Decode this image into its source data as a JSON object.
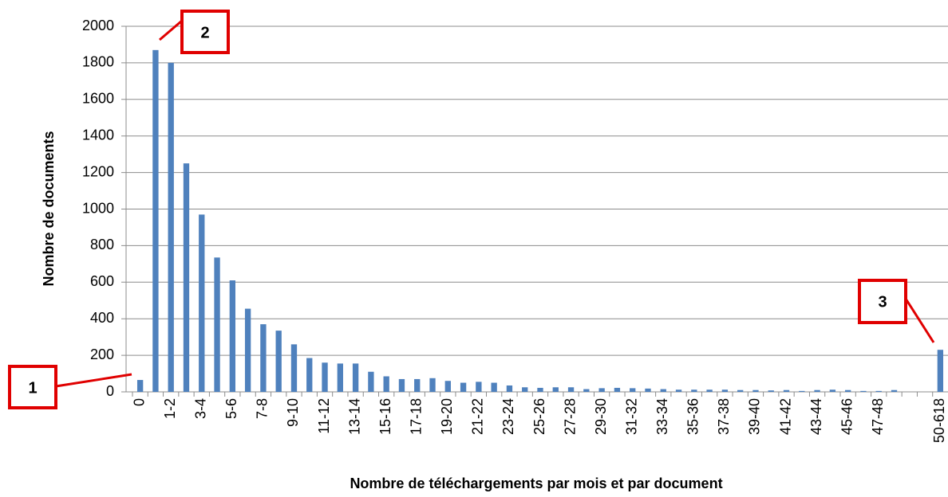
{
  "chart_data": {
    "type": "bar",
    "xlabel": "Nombre de téléchargements par mois et par document",
    "ylabel": "Nombre de documents",
    "categories": [
      "0",
      null,
      "1-2",
      null,
      "3-4",
      null,
      "5-6",
      null,
      "7-8",
      null,
      "9-10",
      null,
      "11-12",
      null,
      "13-14",
      null,
      "15-16",
      null,
      "17-18",
      null,
      "19-20",
      null,
      "21-22",
      null,
      "23-24",
      null,
      "25-26",
      null,
      "27-28",
      null,
      "29-30",
      null,
      "31-32",
      null,
      "33-34",
      null,
      "35-36",
      null,
      "37-38",
      null,
      "39-40",
      null,
      "41-42",
      null,
      "43-44",
      null,
      "45-46",
      null,
      "47-48",
      null,
      null,
      null,
      "50-618"
    ],
    "values": [
      65,
      1870,
      1800,
      1250,
      970,
      735,
      610,
      455,
      370,
      335,
      260,
      185,
      160,
      155,
      155,
      110,
      85,
      70,
      70,
      75,
      60,
      50,
      55,
      50,
      35,
      25,
      22,
      25,
      25,
      15,
      20,
      22,
      20,
      18,
      15,
      12,
      12,
      12,
      12,
      10,
      10,
      8,
      10,
      5,
      10,
      12,
      10,
      5,
      5,
      10,
      0,
      0,
      230
    ],
    "color": "#4f81bd",
    "ylim": [
      0,
      2000
    ],
    "yticks": [
      0,
      200,
      400,
      600,
      800,
      1000,
      1200,
      1400,
      1600,
      1800,
      2000
    ],
    "grid": true,
    "annotations": [
      "1",
      "2",
      "3"
    ]
  }
}
